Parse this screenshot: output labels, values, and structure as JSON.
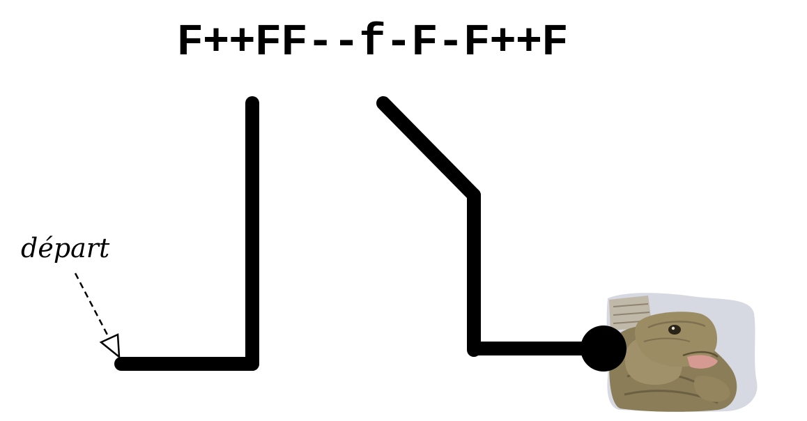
{
  "command": {
    "text": "F++FF--f-F-F++F"
  },
  "start_label": {
    "text": "départ"
  },
  "colors": {
    "stroke": "#000000",
    "background": "#ffffff",
    "turtle_shell": "#8a7d57",
    "turtle_skin": "#9c8c63",
    "turtle_background": "#c9cbd6"
  },
  "icons": {
    "turtle": "turtle-photo-icon",
    "start_arrow": "dashed-arrow-icon",
    "turtle_position": "filled-circle-icon"
  }
}
